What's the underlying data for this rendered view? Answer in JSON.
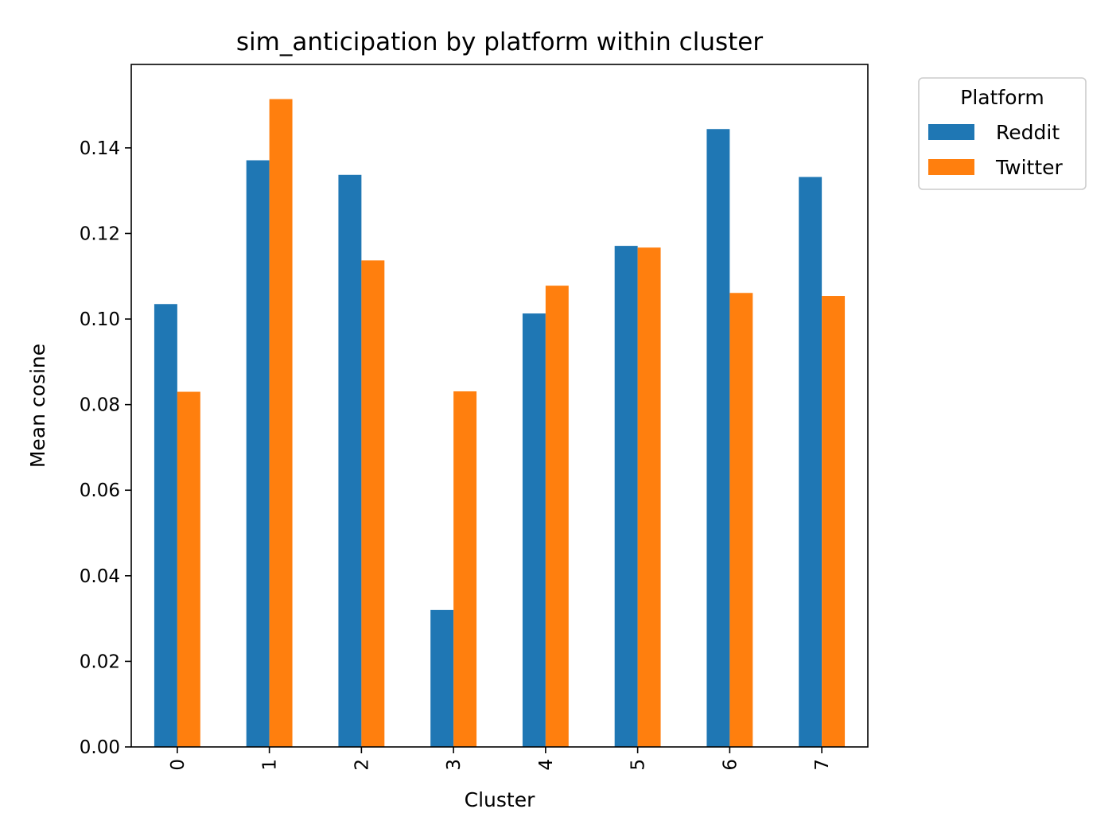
{
  "chart_data": {
    "type": "bar",
    "title": "sim_anticipation by platform within cluster",
    "xlabel": "Cluster",
    "ylabel": "Mean cosine",
    "categories": [
      "0",
      "1",
      "2",
      "3",
      "4",
      "5",
      "6",
      "7"
    ],
    "series": [
      {
        "name": "Reddit",
        "color": "#1f77b4",
        "values": [
          0.1035,
          0.1371,
          0.1337,
          0.032,
          0.1013,
          0.1171,
          0.1444,
          0.1332
        ]
      },
      {
        "name": "Twitter",
        "color": "#ff7f0e",
        "values": [
          0.083,
          0.1514,
          0.1137,
          0.0831,
          0.1078,
          0.1167,
          0.1061,
          0.1054
        ]
      }
    ],
    "ylim": [
      0,
      0.1595
    ],
    "yticks": [
      0.0,
      0.02,
      0.04,
      0.06,
      0.08,
      0.1,
      0.12,
      0.14
    ],
    "ytick_labels": [
      "0.00",
      "0.02",
      "0.04",
      "0.06",
      "0.08",
      "0.10",
      "0.12",
      "0.14"
    ],
    "grid": false,
    "legend": {
      "title": "Platform",
      "placement": "outside-top-right"
    }
  }
}
